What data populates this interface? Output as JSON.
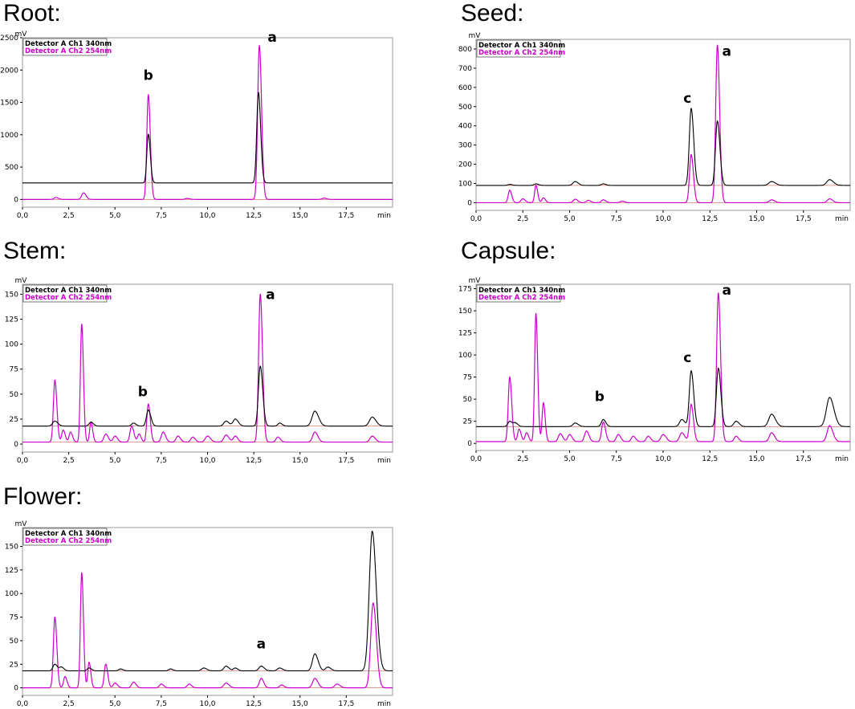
{
  "chart_data": [
    {
      "type": "line",
      "title": "Root:",
      "y_unit": "mV",
      "x_unit": "min",
      "xlim": [
        0,
        20
      ],
      "ylim": [
        -120,
        2500
      ],
      "yticks": [
        0,
        500,
        1000,
        1500,
        2000,
        2500
      ],
      "xticks": [
        0,
        2.5,
        5,
        7.5,
        10,
        12.5,
        15,
        17.5
      ],
      "xtick_labels": [
        "0,0",
        "2,5",
        "5,0",
        "7,5",
        "10,0",
        "12,5",
        "15,0",
        "17,5"
      ],
      "legend": [
        "Detector A Ch1 340nm",
        "Detector A Ch2 254nm"
      ],
      "series": [
        {
          "name": "Detector A Ch1 340nm",
          "color": "#000000",
          "baseline": 255,
          "peaks": [
            [
              6.8,
              750,
              0.08
            ],
            [
              12.75,
              1400,
              0.09
            ]
          ]
        },
        {
          "name": "Detector A Ch2 254nm",
          "color": "#cc00cc",
          "baseline": 0,
          "peaks": [
            [
              1.8,
              30,
              0.1
            ],
            [
              3.3,
              100,
              0.1
            ],
            [
              6.8,
              1620,
              0.08
            ],
            [
              8.9,
              15,
              0.1
            ],
            [
              12.8,
              2380,
              0.09
            ],
            [
              16.3,
              20,
              0.1
            ]
          ]
        }
      ],
      "annotations": [
        {
          "text": "b",
          "x": 6.8,
          "y": 1850
        },
        {
          "text": "a",
          "x": 13.5,
          "y": 2440
        }
      ]
    },
    {
      "type": "line",
      "title": "Seed:",
      "y_unit": "mV",
      "x_unit": "min",
      "xlim": [
        0,
        20
      ],
      "ylim": [
        -40,
        850
      ],
      "yticks": [
        0,
        100,
        200,
        300,
        400,
        500,
        600,
        700,
        800
      ],
      "xticks": [
        0,
        2.5,
        5,
        7.5,
        10,
        12.5,
        15,
        17.5
      ],
      "xtick_labels": [
        "0,0",
        "2,5",
        "5,0",
        "7,5",
        "10,0",
        "12,5",
        "15,0",
        "17,5"
      ],
      "legend": [
        "Detector A Ch1 340nm",
        "Detector A Ch2 254nm"
      ],
      "series": [
        {
          "name": "Detector A Ch1 340nm",
          "color": "#000000",
          "baseline": 90,
          "peaks": [
            [
              1.8,
              5,
              0.1
            ],
            [
              3.2,
              8,
              0.1
            ],
            [
              5.3,
              20,
              0.12
            ],
            [
              6.8,
              8,
              0.1
            ],
            [
              11.5,
              400,
              0.1
            ],
            [
              12.9,
              335,
              0.1
            ],
            [
              15.8,
              20,
              0.15
            ],
            [
              18.9,
              30,
              0.15
            ]
          ]
        },
        {
          "name": "Detector A Ch2 254nm",
          "color": "#cc00cc",
          "baseline": 0,
          "peaks": [
            [
              1.8,
              65,
              0.08
            ],
            [
              2.5,
              20,
              0.1
            ],
            [
              3.2,
              90,
              0.07
            ],
            [
              3.6,
              25,
              0.08
            ],
            [
              5.3,
              18,
              0.1
            ],
            [
              6.0,
              12,
              0.1
            ],
            [
              6.8,
              15,
              0.1
            ],
            [
              7.8,
              8,
              0.1
            ],
            [
              11.5,
              250,
              0.09
            ],
            [
              12.9,
              820,
              0.09
            ],
            [
              15.8,
              15,
              0.12
            ],
            [
              18.9,
              20,
              0.12
            ]
          ]
        }
      ],
      "annotations": [
        {
          "text": "c",
          "x": 11.3,
          "y": 520
        },
        {
          "text": "a",
          "x": 13.4,
          "y": 765
        }
      ]
    },
    {
      "type": "line",
      "title": "Stem:",
      "y_unit": "mV",
      "x_unit": "min",
      "xlim": [
        0,
        20
      ],
      "ylim": [
        -8,
        160
      ],
      "yticks": [
        0,
        25,
        50,
        75,
        100,
        125,
        150
      ],
      "xticks": [
        0,
        2.5,
        5,
        7.5,
        10,
        12.5,
        15,
        17.5
      ],
      "xtick_labels": [
        "0,0",
        "2,5",
        "5,0",
        "7,5",
        "10,0",
        "12,5",
        "15,0",
        "17,5"
      ],
      "legend": [
        "Detector A Ch1 340nm",
        "Detector A Ch2 254nm"
      ],
      "series": [
        {
          "name": "Detector A Ch1 340nm",
          "color": "#000000",
          "baseline": 18,
          "peaks": [
            [
              1.75,
              5,
              0.12
            ],
            [
              3.7,
              4,
              0.1
            ],
            [
              6.0,
              3,
              0.1
            ],
            [
              6.8,
              16,
              0.1
            ],
            [
              11.0,
              5,
              0.12
            ],
            [
              11.5,
              7,
              0.12
            ],
            [
              12.85,
              60,
              0.1
            ],
            [
              13.9,
              3,
              0.1
            ],
            [
              15.8,
              15,
              0.15
            ],
            [
              18.9,
              9,
              0.15
            ]
          ]
        },
        {
          "name": "Detector A Ch2 254nm",
          "color": "#cc00cc",
          "baseline": 2,
          "peaks": [
            [
              1.75,
              62,
              0.08
            ],
            [
              2.2,
              12,
              0.08
            ],
            [
              2.6,
              10,
              0.08
            ],
            [
              3.2,
              118,
              0.07
            ],
            [
              3.7,
              20,
              0.07
            ],
            [
              4.5,
              8,
              0.1
            ],
            [
              5.0,
              6,
              0.1
            ],
            [
              5.9,
              16,
              0.09
            ],
            [
              6.3,
              8,
              0.08
            ],
            [
              6.8,
              38,
              0.08
            ],
            [
              7.6,
              10,
              0.1
            ],
            [
              8.4,
              6,
              0.1
            ],
            [
              9.2,
              5,
              0.1
            ],
            [
              10.0,
              6,
              0.12
            ],
            [
              11.0,
              7,
              0.12
            ],
            [
              11.5,
              6,
              0.1
            ],
            [
              12.85,
              148,
              0.09
            ],
            [
              13.8,
              5,
              0.1
            ],
            [
              15.8,
              10,
              0.12
            ],
            [
              18.9,
              6,
              0.12
            ]
          ]
        }
      ],
      "annotations": [
        {
          "text": "b",
          "x": 6.5,
          "y": 48
        },
        {
          "text": "a",
          "x": 13.4,
          "y": 145
        }
      ]
    },
    {
      "type": "line",
      "title": "Capsule:",
      "y_unit": "mV",
      "x_unit": "min",
      "xlim": [
        0,
        20
      ],
      "ylim": [
        -8,
        180
      ],
      "yticks": [
        0,
        25,
        50,
        75,
        100,
        125,
        150,
        175
      ],
      "xticks": [
        0,
        2.5,
        5,
        7.5,
        10,
        12.5,
        15,
        17.5
      ],
      "xtick_labels": [
        "0,0",
        "2,5",
        "5,0",
        "7,5",
        "10,0",
        "12,5",
        "15,0",
        "17,5"
      ],
      "legend": [
        "Detector A Ch1 340nm",
        "Detector A Ch2 254nm"
      ],
      "series": [
        {
          "name": "Detector A Ch1 340nm",
          "color": "#000000",
          "baseline": 19,
          "peaks": [
            [
              1.8,
              6,
              0.1
            ],
            [
              2.1,
              4,
              0.1
            ],
            [
              5.3,
              4,
              0.12
            ],
            [
              6.8,
              8,
              0.1
            ],
            [
              11.0,
              8,
              0.12
            ],
            [
              11.5,
              63,
              0.1
            ],
            [
              12.95,
              66,
              0.1
            ],
            [
              13.9,
              6,
              0.12
            ],
            [
              15.8,
              14,
              0.15
            ],
            [
              18.9,
              33,
              0.17
            ]
          ]
        },
        {
          "name": "Detector A Ch2 254nm",
          "color": "#cc00cc",
          "baseline": 2,
          "peaks": [
            [
              1.8,
              73,
              0.08
            ],
            [
              2.3,
              14,
              0.08
            ],
            [
              2.7,
              10,
              0.08
            ],
            [
              3.2,
              145,
              0.07
            ],
            [
              3.6,
              44,
              0.07
            ],
            [
              4.5,
              9,
              0.1
            ],
            [
              5.0,
              8,
              0.1
            ],
            [
              5.9,
              12,
              0.1
            ],
            [
              6.8,
              22,
              0.09
            ],
            [
              7.6,
              8,
              0.1
            ],
            [
              8.4,
              6,
              0.1
            ],
            [
              9.2,
              6,
              0.1
            ],
            [
              10.0,
              8,
              0.12
            ],
            [
              11.0,
              10,
              0.12
            ],
            [
              11.5,
              42,
              0.09
            ],
            [
              12.95,
              168,
              0.09
            ],
            [
              13.9,
              6,
              0.1
            ],
            [
              15.8,
              10,
              0.12
            ],
            [
              18.9,
              18,
              0.13
            ]
          ]
        }
      ],
      "annotations": [
        {
          "text": "b",
          "x": 6.6,
          "y": 48
        },
        {
          "text": "c",
          "x": 11.3,
          "y": 92
        },
        {
          "text": "a",
          "x": 13.4,
          "y": 168
        }
      ]
    },
    {
      "type": "line",
      "title": "Flower:",
      "y_unit": "mV",
      "x_unit": "min",
      "xlim": [
        0,
        20
      ],
      "ylim": [
        -8,
        170
      ],
      "yticks": [
        0,
        25,
        50,
        75,
        100,
        125,
        150
      ],
      "xticks": [
        0,
        2.5,
        5,
        7.5,
        10,
        12.5,
        15,
        17.5
      ],
      "xtick_labels": [
        "0,0",
        "2,5",
        "5,0",
        "7,5",
        "10,0",
        "12,5",
        "15,0",
        "17,5"
      ],
      "legend": [
        "Detector A Ch1 340nm",
        "Detector A Ch2 254nm"
      ],
      "series": [
        {
          "name": "Detector A Ch1 340nm",
          "color": "#000000",
          "baseline": 18,
          "peaks": [
            [
              1.75,
              7,
              0.1
            ],
            [
              2.1,
              4,
              0.1
            ],
            [
              3.6,
              3,
              0.1
            ],
            [
              5.3,
              2,
              0.1
            ],
            [
              8.0,
              2,
              0.1
            ],
            [
              9.8,
              3,
              0.12
            ],
            [
              11.0,
              5,
              0.12
            ],
            [
              11.5,
              3,
              0.1
            ],
            [
              12.9,
              5,
              0.12
            ],
            [
              13.9,
              3,
              0.12
            ],
            [
              15.8,
              18,
              0.13
            ],
            [
              16.5,
              4,
              0.12
            ],
            [
              18.9,
              148,
              0.16
            ]
          ]
        },
        {
          "name": "Detector A Ch2 254nm",
          "color": "#cc00cc",
          "baseline": 0,
          "peaks": [
            [
              1.75,
              75,
              0.08
            ],
            [
              2.3,
              12,
              0.08
            ],
            [
              3.2,
              122,
              0.07
            ],
            [
              3.6,
              27,
              0.07
            ],
            [
              4.5,
              25,
              0.08
            ],
            [
              5.0,
              5,
              0.1
            ],
            [
              6.0,
              6,
              0.1
            ],
            [
              7.5,
              4,
              0.1
            ],
            [
              9.0,
              4,
              0.1
            ],
            [
              11.0,
              5,
              0.12
            ],
            [
              12.9,
              10,
              0.1
            ],
            [
              14.0,
              3,
              0.1
            ],
            [
              15.8,
              10,
              0.12
            ],
            [
              17.0,
              4,
              0.12
            ],
            [
              18.95,
              90,
              0.13
            ]
          ]
        }
      ],
      "annotations": [
        {
          "text": "a",
          "x": 12.9,
          "y": 42
        }
      ]
    }
  ]
}
